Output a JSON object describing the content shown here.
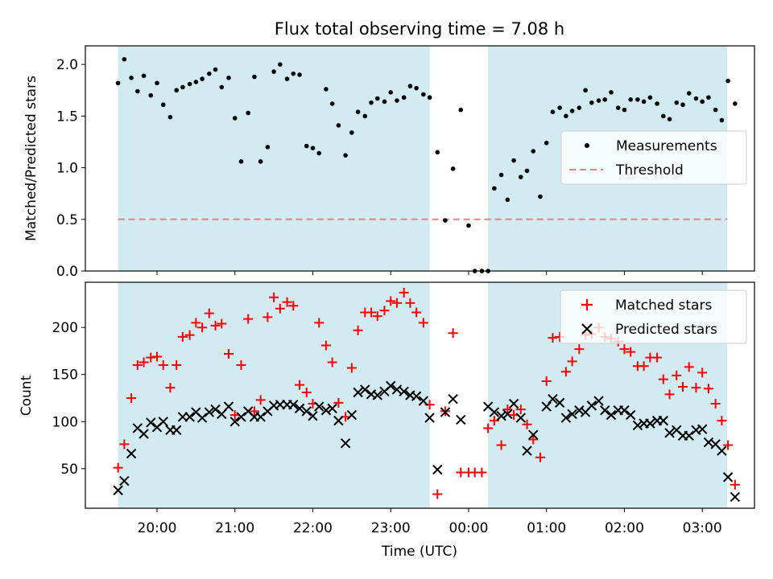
{
  "title": "Flux total observing time = 7.08 h",
  "colors": {
    "shade": "#add8e6",
    "measurement": "#000000",
    "threshold": "#f08080",
    "matched": "#ff0000",
    "predicted": "#000000"
  },
  "chart_data": [
    {
      "type": "scatter",
      "panel": "top",
      "ylabel": "Matched/Predicted stars",
      "xlim_hours": [
        19.08,
        27.67
      ],
      "ylim": [
        0.0,
        2.18
      ],
      "yticks": [
        0.0,
        0.5,
        1.0,
        1.5,
        2.0
      ],
      "ytick_labels": [
        "0.0",
        "0.5",
        "1.0",
        "1.5",
        "2.0"
      ],
      "legend_position": "center-right",
      "legend": [
        "Measurements",
        "Threshold"
      ],
      "threshold": 0.5,
      "threshold_x_hours": [
        19.5,
        27.32
      ],
      "shaded_intervals_hours": [
        [
          19.5,
          23.5
        ],
        [
          24.25,
          27.32
        ]
      ],
      "series": [
        {
          "name": "Measurements",
          "x_hours": [
            19.5,
            19.58,
            19.67,
            19.75,
            19.83,
            19.92,
            20.0,
            20.08,
            20.17,
            20.25,
            20.33,
            20.42,
            20.5,
            20.58,
            20.67,
            20.75,
            20.83,
            20.92,
            21.0,
            21.08,
            21.17,
            21.25,
            21.33,
            21.42,
            21.5,
            21.58,
            21.67,
            21.75,
            21.83,
            21.92,
            22.0,
            22.08,
            22.17,
            22.25,
            22.33,
            22.42,
            22.5,
            22.58,
            22.67,
            22.75,
            22.83,
            22.92,
            23.0,
            23.08,
            23.17,
            23.25,
            23.33,
            23.42,
            23.5,
            23.6,
            23.7,
            23.8,
            23.9,
            24.0,
            24.08,
            24.17,
            24.25,
            24.33,
            24.42,
            24.5,
            24.58,
            24.67,
            24.75,
            24.83,
            24.92,
            25.0,
            25.08,
            25.17,
            25.25,
            25.33,
            25.42,
            25.5,
            25.58,
            25.67,
            25.75,
            25.83,
            25.92,
            26.0,
            26.08,
            26.17,
            26.25,
            26.33,
            26.42,
            26.5,
            26.58,
            26.67,
            26.75,
            26.83,
            26.92,
            27.0,
            27.08,
            27.17,
            27.25,
            27.33,
            27.42
          ],
          "y": [
            1.82,
            2.05,
            1.87,
            1.74,
            1.89,
            1.7,
            1.82,
            1.61,
            1.49,
            1.75,
            1.78,
            1.81,
            1.83,
            1.86,
            1.91,
            1.95,
            1.78,
            1.87,
            1.48,
            1.06,
            1.53,
            1.88,
            1.06,
            1.2,
            1.93,
            2.0,
            1.86,
            1.91,
            1.9,
            1.21,
            1.19,
            1.14,
            1.76,
            1.62,
            1.41,
            1.12,
            1.34,
            1.54,
            1.5,
            1.63,
            1.67,
            1.64,
            1.73,
            1.65,
            1.68,
            1.79,
            1.77,
            1.71,
            1.68,
            1.15,
            0.49,
            0.99,
            1.56,
            0.44,
            0.0,
            0.0,
            0.0,
            0.8,
            0.93,
            0.69,
            1.07,
            0.91,
            0.97,
            1.16,
            0.72,
            1.24,
            1.54,
            1.58,
            1.5,
            1.55,
            1.58,
            1.75,
            1.63,
            1.65,
            1.66,
            1.73,
            1.58,
            1.56,
            1.66,
            1.66,
            1.64,
            1.68,
            1.62,
            1.5,
            1.47,
            1.63,
            1.61,
            1.72,
            1.67,
            1.64,
            1.68,
            1.56,
            1.46,
            1.84,
            1.62
          ]
        }
      ]
    },
    {
      "type": "scatter",
      "panel": "bottom",
      "xlabel": "Time (UTC)",
      "ylabel": "Count",
      "xlim_hours": [
        19.08,
        27.67
      ],
      "ylim": [
        8,
        248
      ],
      "yticks": [
        50,
        100,
        150,
        200
      ],
      "ytick_labels": [
        "50",
        "100",
        "150",
        "200"
      ],
      "xticks_hours": [
        20,
        21,
        22,
        23,
        24,
        25,
        26,
        27
      ],
      "xtick_labels": [
        "20:00",
        "21:00",
        "22:00",
        "23:00",
        "00:00",
        "01:00",
        "02:00",
        "03:00"
      ],
      "legend_position": "top-right",
      "legend": [
        "Matched stars",
        "Predicted stars"
      ],
      "shaded_intervals_hours": [
        [
          19.5,
          23.5
        ],
        [
          24.25,
          27.32
        ]
      ],
      "series": [
        {
          "name": "Matched stars",
          "marker": "plus",
          "points": [
            [
              19.5,
              51
            ],
            [
              19.58,
              76
            ],
            [
              19.67,
              125
            ],
            [
              19.75,
              160
            ],
            [
              19.83,
              163
            ],
            [
              19.92,
              168
            ],
            [
              20.0,
              169
            ],
            [
              20.08,
              160
            ],
            [
              20.17,
              136
            ],
            [
              20.25,
              160
            ],
            [
              20.33,
              190
            ],
            [
              20.42,
              192
            ],
            [
              20.5,
              205
            ],
            [
              20.58,
              200
            ],
            [
              20.67,
              215
            ],
            [
              20.75,
              202
            ],
            [
              20.83,
              204
            ],
            [
              20.92,
              172
            ],
            [
              21.0,
              107
            ],
            [
              21.08,
              160
            ],
            [
              21.17,
              209
            ],
            [
              21.25,
              111
            ],
            [
              21.33,
              123
            ],
            [
              21.42,
              211
            ],
            [
              21.5,
              232
            ],
            [
              21.58,
              220
            ],
            [
              21.67,
              227
            ],
            [
              21.75,
              223
            ],
            [
              21.83,
              139
            ],
            [
              21.92,
              131
            ],
            [
              22.0,
              119
            ],
            [
              22.08,
              205
            ],
            [
              22.17,
              181
            ],
            [
              22.25,
              163
            ],
            [
              22.33,
              120
            ],
            [
              22.42,
              105
            ],
            [
              22.5,
              157
            ],
            [
              22.58,
              197
            ],
            [
              22.67,
              216
            ],
            [
              22.75,
              216
            ],
            [
              22.83,
              212
            ],
            [
              22.92,
              218
            ],
            [
              23.0,
              228
            ],
            [
              23.08,
              226
            ],
            [
              23.17,
              237
            ],
            [
              23.25,
              226
            ],
            [
              23.33,
              216
            ],
            [
              23.42,
              205
            ],
            [
              23.5,
              118
            ],
            [
              23.6,
              23
            ],
            [
              23.7,
              111
            ],
            [
              23.8,
              194
            ],
            [
              23.9,
              46
            ],
            [
              24.0,
              46
            ],
            [
              24.08,
              46
            ],
            [
              24.17,
              46
            ],
            [
              24.25,
              93
            ],
            [
              24.33,
              101
            ],
            [
              24.42,
              75
            ],
            [
              24.5,
              113
            ],
            [
              24.58,
              107
            ],
            [
              24.67,
              113
            ],
            [
              24.75,
              97
            ],
            [
              24.83,
              81
            ],
            [
              24.92,
              62
            ],
            [
              25.0,
              143
            ],
            [
              25.08,
              189
            ],
            [
              25.17,
              190
            ],
            [
              25.25,
              153
            ],
            [
              25.33,
              164
            ],
            [
              25.42,
              177
            ],
            [
              25.5,
              192
            ],
            [
              25.58,
              193
            ],
            [
              25.67,
              200
            ],
            [
              25.75,
              190
            ],
            [
              25.83,
              188
            ],
            [
              25.92,
              185
            ],
            [
              26.0,
              177
            ],
            [
              26.08,
              174
            ],
            [
              26.17,
              159
            ],
            [
              26.25,
              159
            ],
            [
              26.33,
              168
            ],
            [
              26.42,
              168
            ],
            [
              26.5,
              145
            ],
            [
              26.58,
              129
            ],
            [
              26.67,
              149
            ],
            [
              26.75,
              137
            ],
            [
              26.83,
              158
            ],
            [
              26.92,
              136
            ],
            [
              27.0,
              152
            ],
            [
              27.08,
              135
            ],
            [
              27.17,
              119
            ],
            [
              27.25,
              101
            ],
            [
              27.33,
              75
            ],
            [
              27.42,
              33
            ]
          ]
        },
        {
          "name": "Predicted stars",
          "marker": "x",
          "points": [
            [
              19.5,
              27
            ],
            [
              19.58,
              37
            ],
            [
              19.67,
              66
            ],
            [
              19.75,
              93
            ],
            [
              19.83,
              87
            ],
            [
              19.92,
              99
            ],
            [
              20.0,
              94
            ],
            [
              20.08,
              100
            ],
            [
              20.17,
              91
            ],
            [
              20.25,
              91
            ],
            [
              20.33,
              105
            ],
            [
              20.42,
              105
            ],
            [
              20.5,
              110
            ],
            [
              20.58,
              104
            ],
            [
              20.67,
              110
            ],
            [
              20.75,
              113
            ],
            [
              20.83,
              108
            ],
            [
              20.92,
              116
            ],
            [
              21.0,
              100
            ],
            [
              21.08,
              105
            ],
            [
              21.17,
              111
            ],
            [
              21.25,
              105
            ],
            [
              21.33,
              105
            ],
            [
              21.42,
              111
            ],
            [
              21.5,
              117
            ],
            [
              21.58,
              118
            ],
            [
              21.67,
              118
            ],
            [
              21.75,
              118
            ],
            [
              21.83,
              114
            ],
            [
              21.92,
              111
            ],
            [
              22.0,
              106
            ],
            [
              22.08,
              116
            ],
            [
              22.17,
              112
            ],
            [
              22.25,
              114
            ],
            [
              22.33,
              101
            ],
            [
              22.42,
              77
            ],
            [
              22.5,
              107
            ],
            [
              22.58,
              131
            ],
            [
              22.67,
              134
            ],
            [
              22.75,
              129
            ],
            [
              22.83,
              128
            ],
            [
              22.92,
              132
            ],
            [
              23.0,
              138
            ],
            [
              23.08,
              134
            ],
            [
              23.17,
              132
            ],
            [
              23.25,
              128
            ],
            [
              23.33,
              127
            ],
            [
              23.42,
              122
            ],
            [
              23.5,
              104
            ],
            [
              23.6,
              49
            ],
            [
              23.7,
              110
            ],
            [
              23.8,
              124
            ],
            [
              23.9,
              102
            ],
            [
              24.25,
              116
            ],
            [
              24.33,
              110
            ],
            [
              24.42,
              106
            ],
            [
              24.5,
              108
            ],
            [
              24.58,
              119
            ],
            [
              24.67,
              104
            ],
            [
              24.75,
              69
            ],
            [
              24.83,
              86
            ],
            [
              25.0,
              116
            ],
            [
              25.08,
              124
            ],
            [
              25.17,
              120
            ],
            [
              25.25,
              104
            ],
            [
              25.33,
              108
            ],
            [
              25.42,
              112
            ],
            [
              25.5,
              110
            ],
            [
              25.58,
              117
            ],
            [
              25.67,
              122
            ],
            [
              25.75,
              112
            ],
            [
              25.83,
              107
            ],
            [
              25.92,
              112
            ],
            [
              26.0,
              112
            ],
            [
              26.08,
              107
            ],
            [
              26.17,
              96
            ],
            [
              26.25,
              98
            ],
            [
              26.33,
              98
            ],
            [
              26.42,
              101
            ],
            [
              26.5,
              101
            ],
            [
              26.58,
              88
            ],
            [
              26.67,
              91
            ],
            [
              26.75,
              85
            ],
            [
              26.83,
              85
            ],
            [
              26.92,
              91
            ],
            [
              27.0,
              92
            ],
            [
              27.08,
              78
            ],
            [
              27.17,
              76
            ],
            [
              27.25,
              69
            ],
            [
              27.33,
              41
            ],
            [
              27.42,
              20
            ]
          ]
        }
      ]
    }
  ]
}
